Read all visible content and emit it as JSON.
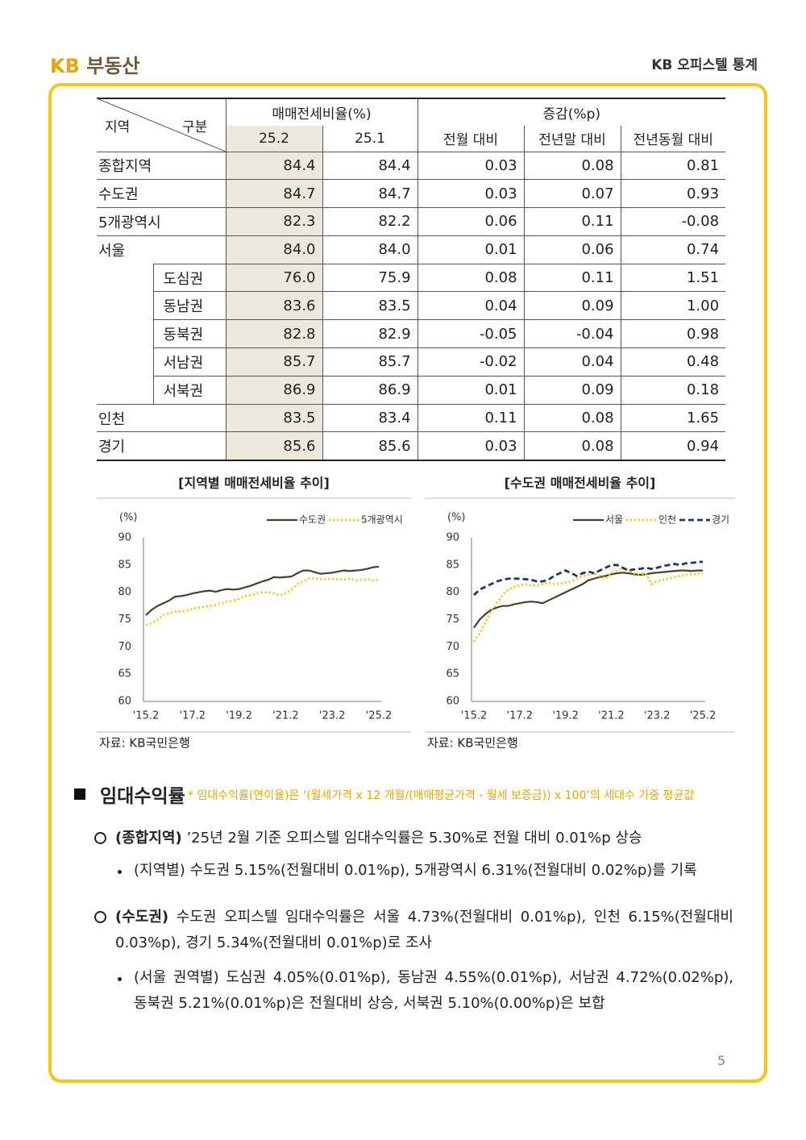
{
  "header": {
    "logo_kb": "KB",
    "logo_text": "부동산",
    "title": "KB 오피스텔 통계"
  },
  "table": {
    "corner_left": "지역",
    "corner_right": "구분",
    "group1": "매매전세비율(%)",
    "group2": "증감(%p)",
    "columns": [
      "25.2",
      "25.1",
      "전월 대비",
      "전년말 대비",
      "전년동월 대비"
    ],
    "rows": [
      {
        "label": "종합지역",
        "values": [
          "84.4",
          "84.4",
          "0.03",
          "0.08",
          "0.81"
        ]
      },
      {
        "label": "수도권",
        "values": [
          "84.7",
          "84.7",
          "0.03",
          "0.07",
          "0.93"
        ]
      },
      {
        "label": "5개광역시",
        "values": [
          "82.3",
          "82.2",
          "0.06",
          "0.11",
          "-0.08"
        ]
      },
      {
        "label": "서울",
        "values": [
          "84.0",
          "84.0",
          "0.01",
          "0.06",
          "0.74"
        ]
      },
      {
        "label": "도심권",
        "indent": true,
        "values": [
          "76.0",
          "75.9",
          "0.08",
          "0.11",
          "1.51"
        ]
      },
      {
        "label": "동남권",
        "indent": true,
        "values": [
          "83.6",
          "83.5",
          "0.04",
          "0.09",
          "1.00"
        ]
      },
      {
        "label": "동북권",
        "indent": true,
        "values": [
          "82.8",
          "82.9",
          "-0.05",
          "-0.04",
          "0.98"
        ]
      },
      {
        "label": "서남권",
        "indent": true,
        "values": [
          "85.7",
          "85.7",
          "-0.02",
          "0.04",
          "0.48"
        ]
      },
      {
        "label": "서북권",
        "indent": true,
        "values": [
          "86.9",
          "86.9",
          "0.01",
          "0.09",
          "0.18"
        ]
      },
      {
        "label": "인천",
        "values": [
          "83.5",
          "83.4",
          "0.11",
          "0.08",
          "1.65"
        ]
      },
      {
        "label": "경기",
        "values": [
          "85.6",
          "85.6",
          "0.03",
          "0.08",
          "0.94"
        ]
      }
    ]
  },
  "chart_data": [
    {
      "type": "line",
      "title": "[지역별 매매전세비율 추이]",
      "y_label": "(%)",
      "source": "자료: KB국민은행",
      "categories": [
        "'15.2",
        null,
        null,
        null,
        null,
        null,
        null,
        null,
        "'17.2",
        null,
        null,
        null,
        null,
        null,
        null,
        null,
        "'19.2",
        null,
        null,
        null,
        null,
        null,
        null,
        null,
        "'21.2",
        null,
        null,
        null,
        null,
        null,
        null,
        null,
        "'23.2",
        null,
        null,
        null,
        null,
        null,
        null,
        null,
        "'25.2"
      ],
      "ylim": [
        60,
        90
      ],
      "yticks": [
        60,
        65,
        70,
        75,
        80,
        85,
        90
      ],
      "series": [
        {
          "name": "수도권",
          "color": "#4a3f2c",
          "style": "solid",
          "values": [
            75.8,
            76.8,
            77.5,
            78.0,
            78.5,
            79.2,
            79.3,
            79.5,
            79.8,
            80.0,
            80.2,
            80.3,
            80.1,
            80.4,
            80.6,
            80.5,
            80.6,
            80.9,
            81.2,
            81.6,
            82.0,
            82.3,
            82.8,
            82.7,
            82.8,
            82.9,
            83.5,
            84.0,
            84.0,
            83.7,
            83.4,
            83.5,
            83.6,
            83.8,
            84.0,
            83.9,
            84.0,
            84.1,
            84.3,
            84.6,
            84.7
          ]
        },
        {
          "name": "5개광역시",
          "color": "#f5c518",
          "style": "dotted",
          "values": [
            74.0,
            74.3,
            75.0,
            75.8,
            76.2,
            76.5,
            76.5,
            76.6,
            77.0,
            77.2,
            77.3,
            77.5,
            77.7,
            78.0,
            78.3,
            78.5,
            78.8,
            79.3,
            79.5,
            79.8,
            80.0,
            80.0,
            79.8,
            79.5,
            79.8,
            80.5,
            81.5,
            82.0,
            82.5,
            82.6,
            82.4,
            82.4,
            82.5,
            82.4,
            82.3,
            82.5,
            82.2,
            82.3,
            82.4,
            82.2,
            82.3
          ]
        }
      ]
    },
    {
      "type": "line",
      "title": "[수도권 매매전세비율 추이]",
      "y_label": "(%)",
      "source": "자료: KB국민은행",
      "categories": [
        "'15.2",
        null,
        null,
        null,
        null,
        null,
        null,
        null,
        "'17.2",
        null,
        null,
        null,
        null,
        null,
        null,
        null,
        "'19.2",
        null,
        null,
        null,
        null,
        null,
        null,
        null,
        "'21.2",
        null,
        null,
        null,
        null,
        null,
        null,
        null,
        "'23.2",
        null,
        null,
        null,
        null,
        null,
        null,
        null,
        "'25.2"
      ],
      "ylim": [
        60,
        90
      ],
      "yticks": [
        60,
        65,
        70,
        75,
        80,
        85,
        90
      ],
      "series": [
        {
          "name": "서울",
          "color": "#4a3f2c",
          "style": "solid",
          "values": [
            73.5,
            75.0,
            76.0,
            76.8,
            77.2,
            77.5,
            77.5,
            77.8,
            78.0,
            78.2,
            78.3,
            78.2,
            78.0,
            78.5,
            79.0,
            79.5,
            80.0,
            80.5,
            81.0,
            81.5,
            82.2,
            82.5,
            82.8,
            83.0,
            83.3,
            83.5,
            83.6,
            83.5,
            83.3,
            83.2,
            83.3,
            83.5,
            83.6,
            83.7,
            83.8,
            83.9,
            84.0,
            84.0,
            83.9,
            84.0,
            84.0
          ]
        },
        {
          "name": "인천",
          "color": "#f5c518",
          "style": "dotted",
          "values": [
            71.0,
            72.5,
            74.5,
            76.5,
            78.0,
            79.5,
            80.5,
            81.0,
            81.3,
            81.5,
            81.3,
            81.2,
            81.5,
            81.8,
            81.5,
            81.6,
            81.8,
            82.0,
            82.5,
            83.0,
            83.2,
            83.5,
            83.0,
            82.5,
            83.5,
            84.0,
            84.5,
            84.0,
            83.5,
            83.3,
            83.5,
            81.5,
            82.0,
            82.3,
            82.5,
            82.8,
            83.0,
            83.2,
            83.3,
            83.4,
            83.5
          ]
        },
        {
          "name": "경기",
          "color": "#1f3864",
          "style": "dashed",
          "values": [
            79.5,
            80.5,
            81.0,
            81.5,
            82.0,
            82.3,
            82.5,
            82.5,
            82.5,
            82.4,
            82.3,
            82.0,
            82.0,
            82.3,
            83.0,
            83.5,
            84.0,
            83.5,
            83.0,
            83.5,
            83.8,
            83.5,
            84.0,
            84.5,
            85.0,
            85.0,
            84.5,
            84.0,
            84.2,
            84.3,
            84.5,
            84.3,
            84.5,
            84.8,
            85.0,
            85.2,
            85.0,
            85.3,
            85.4,
            85.5,
            85.6
          ]
        }
      ]
    }
  ],
  "section": {
    "title": "임대수익률",
    "note": "* 임대수익률(연이율)은 ‘(월세가격 x 12 개월/(매매평균가격 - 월세 보증금)) x 100’의 세대수 가중 평균값",
    "items": [
      {
        "label": "(종합지역)",
        "text": "’25년 2월 기준 오피스텔 임대수익률은 5.30%로 전월 대비 0.01%p 상승",
        "sub": "(지역별) 수도권 5.15%(전월대비 0.01%p), 5개광역시 6.31%(전월대비 0.02%p)를 기록"
      },
      {
        "label": "(수도권)",
        "text": "수도권 오피스텔 임대수익률은 서울 4.73%(전월대비 0.01%p), 인천 6.15%(전월대비 0.03%p), 경기 5.34%(전월대비 0.01%p)로 조사",
        "sub": "(서울 권역별) 도심권 4.05%(0.01%p), 동남권 4.55%(0.01%p), 서남권 4.72%(0.02%p), 동북권 5.21%(0.01%p)은 전월대비 상승, 서북권 5.10%(0.00%p)은 보합"
      }
    ]
  },
  "page_number": "5"
}
